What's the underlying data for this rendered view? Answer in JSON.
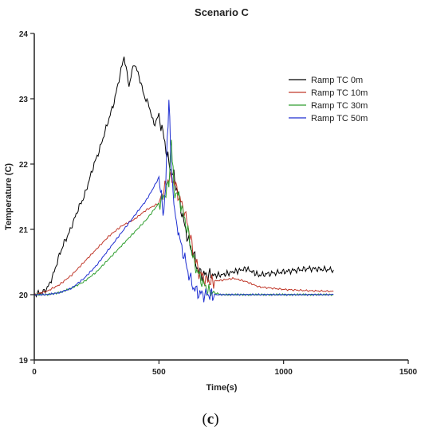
{
  "caption": {
    "open": "(",
    "letter": "c",
    "close": ")"
  },
  "chart_data": {
    "type": "line",
    "title": "Scenario C",
    "xlabel": "Time(s)",
    "ylabel": "Temperature (C)",
    "xlim": [
      0,
      1500
    ],
    "ylim": [
      19,
      24
    ],
    "xticks": [
      0,
      500,
      1000,
      1500
    ],
    "yticks": [
      19,
      20,
      21,
      22,
      23,
      24
    ],
    "grid": false,
    "legend_position": "top-right",
    "series": [
      {
        "name": "Ramp TC 0m",
        "color": "#000000",
        "x": [
          0,
          40,
          60,
          80,
          100,
          120,
          140,
          160,
          180,
          200,
          220,
          240,
          260,
          280,
          300,
          320,
          340,
          360,
          380,
          400,
          420,
          440,
          460,
          480,
          500,
          520,
          540,
          560,
          580,
          600,
          620,
          640,
          660,
          680,
          700,
          750,
          800,
          850,
          900,
          1000,
          1100,
          1200
        ],
        "y": [
          20.0,
          20.05,
          20.15,
          20.35,
          20.6,
          20.8,
          20.95,
          21.15,
          21.35,
          21.5,
          21.75,
          22.0,
          22.2,
          22.45,
          22.7,
          22.95,
          23.3,
          23.65,
          23.2,
          23.55,
          23.35,
          23.05,
          22.9,
          22.6,
          22.75,
          22.4,
          22.0,
          21.8,
          21.5,
          21.1,
          20.8,
          20.6,
          20.35,
          20.3,
          20.3,
          20.3,
          20.35,
          20.4,
          20.3,
          20.35,
          20.4,
          20.38
        ]
      },
      {
        "name": "Ramp TC 10m",
        "color": "#c0392b",
        "x": [
          0,
          50,
          100,
          150,
          200,
          250,
          300,
          350,
          400,
          450,
          500,
          520,
          540,
          560,
          580,
          600,
          620,
          640,
          660,
          680,
          700,
          750,
          800,
          850,
          900,
          1000,
          1100,
          1200
        ],
        "y": [
          20.0,
          20.05,
          20.15,
          20.3,
          20.5,
          20.7,
          20.9,
          21.05,
          21.15,
          21.3,
          21.4,
          21.6,
          21.8,
          21.75,
          21.5,
          21.3,
          21.0,
          20.6,
          20.35,
          20.25,
          20.2,
          20.22,
          20.25,
          20.2,
          20.12,
          20.08,
          20.06,
          20.05
        ]
      },
      {
        "name": "Ramp TC 30m",
        "color": "#2e9e2e",
        "x": [
          0,
          50,
          100,
          150,
          200,
          250,
          300,
          350,
          400,
          450,
          500,
          520,
          540,
          550,
          560,
          580,
          600,
          620,
          640,
          660,
          680,
          700,
          750,
          800,
          900,
          1000,
          1100,
          1200
        ],
        "y": [
          20.0,
          20.0,
          20.03,
          20.1,
          20.2,
          20.35,
          20.55,
          20.75,
          20.95,
          21.15,
          21.4,
          21.5,
          21.7,
          22.4,
          21.6,
          21.5,
          21.2,
          20.9,
          20.5,
          20.3,
          20.15,
          20.05,
          20.0,
          20.0,
          20.0,
          20.0,
          20.0,
          20.0
        ]
      },
      {
        "name": "Ramp TC 50m",
        "color": "#1f2fd1",
        "x": [
          0,
          50,
          100,
          150,
          200,
          250,
          300,
          350,
          400,
          450,
          480,
          500,
          510,
          520,
          530,
          540,
          550,
          560,
          570,
          580,
          600,
          620,
          640,
          660,
          680,
          700,
          750,
          800,
          900,
          1000,
          1100,
          1200
        ],
        "y": [
          20.0,
          20.0,
          20.03,
          20.1,
          20.25,
          20.45,
          20.7,
          20.95,
          21.2,
          21.45,
          21.65,
          21.8,
          21.5,
          21.2,
          22.0,
          23.0,
          21.9,
          21.4,
          21.1,
          20.9,
          20.6,
          20.3,
          20.1,
          20.02,
          20.0,
          20.0,
          20.0,
          20.0,
          20.0,
          20.0,
          20.0,
          20.0
        ]
      }
    ]
  }
}
